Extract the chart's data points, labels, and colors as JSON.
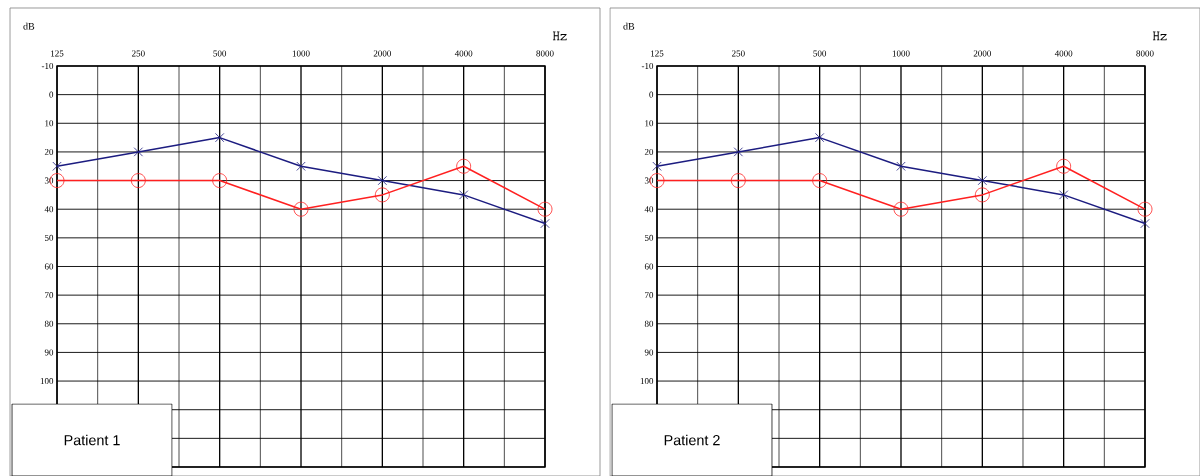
{
  "chart_data": [
    {
      "type": "line",
      "xlabel": "Hz",
      "ylabel": "dB",
      "categories": [
        "125",
        "250",
        "500",
        "1000",
        "2000",
        "4000",
        "8000"
      ],
      "ylim": [
        130,
        -10
      ],
      "yticks": [
        -10,
        0,
        10,
        20,
        30,
        40,
        50,
        60,
        70,
        80,
        90,
        100,
        {
          "value": 110,
          "label": null
        },
        {
          "value": 120,
          "label": null
        },
        {
          "value": 130,
          "label": null
        }
      ],
      "grid": true,
      "line_style": "solid",
      "annotations": [
        "Patient 1"
      ],
      "series": [
        {
          "color": "#1c1c80",
          "marker": "cross",
          "values": [
            25,
            20,
            15,
            25,
            30,
            35,
            45
          ]
        },
        {
          "color": "#ff2020",
          "marker": "circle",
          "values": [
            30,
            30,
            30,
            40,
            35,
            25,
            40
          ]
        }
      ]
    },
    {
      "type": "line",
      "xlabel": "Hz",
      "ylabel": "dB",
      "categories": [
        "125",
        "250",
        "500",
        "1000",
        "2000",
        "4000",
        "8000"
      ],
      "ylim": [
        130,
        -10
      ],
      "yticks": [
        -10,
        0,
        10,
        20,
        30,
        40,
        50,
        60,
        70,
        80,
        90,
        100,
        {
          "value": 110,
          "label": null
        },
        {
          "value": 120,
          "label": null
        },
        {
          "value": 130,
          "label": null
        }
      ],
      "grid": true,
      "line_style": "solid",
      "annotations": [
        "Patient 2"
      ],
      "series": [
        {
          "color": "#1c1c80",
          "marker": "cross",
          "values": [
            25,
            20,
            15,
            25,
            30,
            35,
            45
          ]
        },
        {
          "color": "#ff2020",
          "marker": "circle",
          "values": [
            30,
            30,
            30,
            40,
            35,
            25,
            40
          ]
        }
      ]
    }
  ]
}
